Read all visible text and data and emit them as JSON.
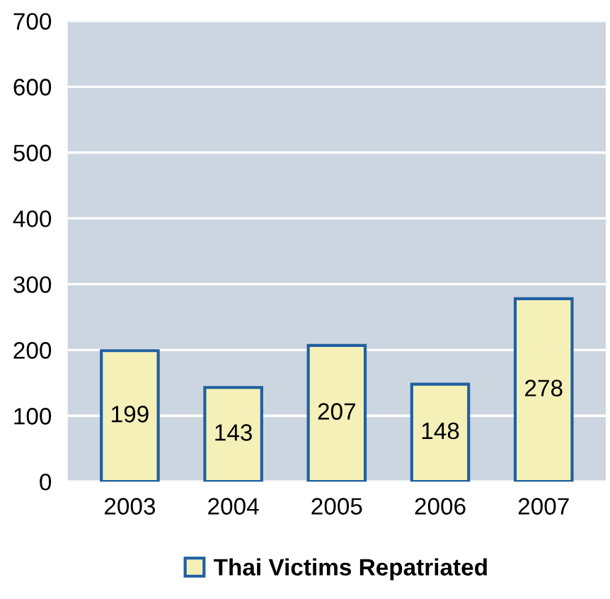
{
  "chart_data": {
    "type": "bar",
    "categories": [
      "2003",
      "2004",
      "2005",
      "2006",
      "2007"
    ],
    "series": [
      {
        "name": "Thai Victims Repatriated",
        "color": "#f5f0b8",
        "values": [
          199,
          143,
          207,
          148,
          278
        ]
      }
    ],
    "ylim": [
      0,
      700
    ],
    "yticks": [
      0,
      100,
      200,
      300,
      400,
      500,
      600,
      700
    ],
    "grid": "y",
    "legend": "bottom",
    "data_labels": true
  }
}
